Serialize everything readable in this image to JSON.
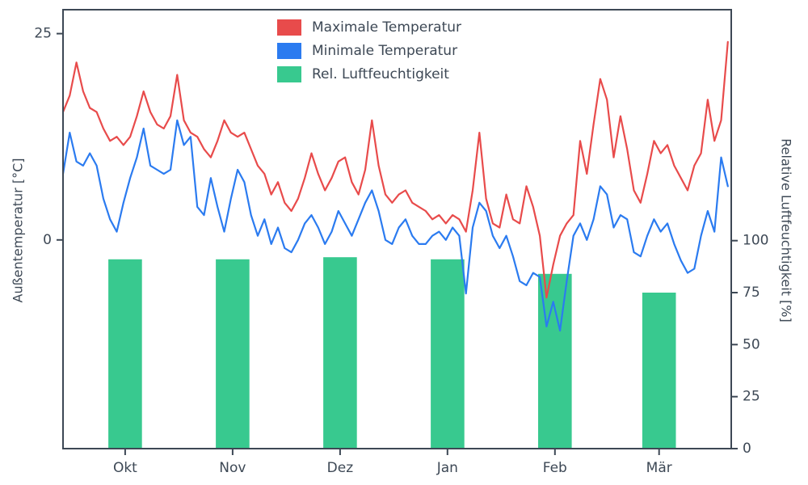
{
  "figure": {
    "background": "#ffffff",
    "frame_color": "#3d4855",
    "text_color": "#3d4855"
  },
  "chart_data": {
    "type": "line+bar",
    "title": "",
    "legend": [
      {
        "label": "Maximale Temperatur",
        "color": "#e84b4b",
        "kind": "patch"
      },
      {
        "label": "Minimale Temperatur",
        "color": "#2b7bf0",
        "kind": "patch"
      },
      {
        "label": "Rel. Luftfeuchtigkeit",
        "color": "#38c98f",
        "kind": "patch"
      }
    ],
    "x_axis": {
      "lim": [
        0,
        199
      ],
      "unit": "days",
      "tick_days": [
        18.5,
        50.5,
        82.5,
        114.5,
        146.5,
        177.5
      ],
      "tick_labels": [
        "Okt",
        "Nov",
        "Dez",
        "Jan",
        "Feb",
        "Mär"
      ]
    },
    "temp_axis": {
      "label": "Außentemperatur [°C]",
      "side": "left",
      "lim": [
        -25.3,
        27.9
      ],
      "ticks": [
        0,
        25
      ]
    },
    "humidity_axis": {
      "label": "Relative Luftfeuchtigkeit [%]",
      "side": "right",
      "lim": [
        0,
        211
      ],
      "ticks": [
        0,
        25,
        50,
        75,
        100
      ]
    },
    "series": [
      {
        "name": "Maximale Temperatur",
        "axis": "temp",
        "color": "#e84b4b",
        "x_step_days": 2,
        "values": [
          15.5,
          17.5,
          21.5,
          18.0,
          16.0,
          15.5,
          13.5,
          12.0,
          12.5,
          11.5,
          12.5,
          15.0,
          18.0,
          15.5,
          14.0,
          13.5,
          15.0,
          20.0,
          14.5,
          13.0,
          12.5,
          11.0,
          10.0,
          12.0,
          14.5,
          13.0,
          12.5,
          13.0,
          11.0,
          9.0,
          8.0,
          5.5,
          7.0,
          4.5,
          3.5,
          5.0,
          7.5,
          10.5,
          8.0,
          6.0,
          7.5,
          9.5,
          10.0,
          7.0,
          5.5,
          8.5,
          14.5,
          9.0,
          5.5,
          4.5,
          5.5,
          6.0,
          4.5,
          4.0,
          3.5,
          2.5,
          3.0,
          2.0,
          3.0,
          2.5,
          1.0,
          6.0,
          13.0,
          5.0,
          2.0,
          1.5,
          5.5,
          2.5,
          2.0,
          6.5,
          4.0,
          0.5,
          -7.0,
          -3.0,
          0.5,
          2.0,
          3.0,
          12.0,
          8.0,
          14.0,
          19.5,
          17.0,
          10.0,
          15.0,
          11.0,
          6.0,
          4.5,
          8.0,
          12.0,
          10.5,
          11.5,
          9.0,
          7.5,
          6.0,
          9.0,
          10.5,
          17.0,
          12.0,
          14.5,
          24.0
        ]
      },
      {
        "name": "Minimale Temperatur",
        "axis": "temp",
        "color": "#2b7bf0",
        "x_step_days": 2,
        "values": [
          8.0,
          13.0,
          9.5,
          9.0,
          10.5,
          9.0,
          5.0,
          2.5,
          1.0,
          4.5,
          7.5,
          10.0,
          13.5,
          9.0,
          8.5,
          8.0,
          8.5,
          14.5,
          11.5,
          12.5,
          4.0,
          3.0,
          7.5,
          4.0,
          1.0,
          5.0,
          8.5,
          7.0,
          3.0,
          0.5,
          2.5,
          -0.5,
          1.5,
          -1.0,
          -1.5,
          0.0,
          2.0,
          3.0,
          1.5,
          -0.5,
          1.0,
          3.5,
          2.0,
          0.5,
          2.5,
          4.5,
          6.0,
          3.5,
          0.0,
          -0.5,
          1.5,
          2.5,
          0.5,
          -0.5,
          -0.5,
          0.5,
          1.0,
          0.0,
          1.5,
          0.5,
          -6.5,
          1.5,
          4.5,
          3.5,
          0.5,
          -1.0,
          0.5,
          -2.0,
          -5.0,
          -5.5,
          -4.0,
          -4.5,
          -10.5,
          -7.5,
          -11.0,
          -5.0,
          0.5,
          2.0,
          0.0,
          2.5,
          6.5,
          5.5,
          1.5,
          3.0,
          2.5,
          -1.5,
          -2.0,
          0.5,
          2.5,
          1.0,
          2.0,
          -0.5,
          -2.5,
          -4.0,
          -3.5,
          0.5,
          3.5,
          1.0,
          10.0,
          6.5
        ]
      }
    ],
    "bars": {
      "name": "Rel. Luftfeuchtigkeit",
      "axis": "humidity",
      "color": "#38c98f",
      "width_days": 10,
      "x_days": [
        18.5,
        50.5,
        82.5,
        114.5,
        146.5,
        177.5
      ],
      "categories": [
        "Okt",
        "Nov",
        "Dez",
        "Jan",
        "Feb",
        "Mär"
      ],
      "values": [
        91,
        91,
        92,
        91,
        84,
        75
      ]
    }
  }
}
